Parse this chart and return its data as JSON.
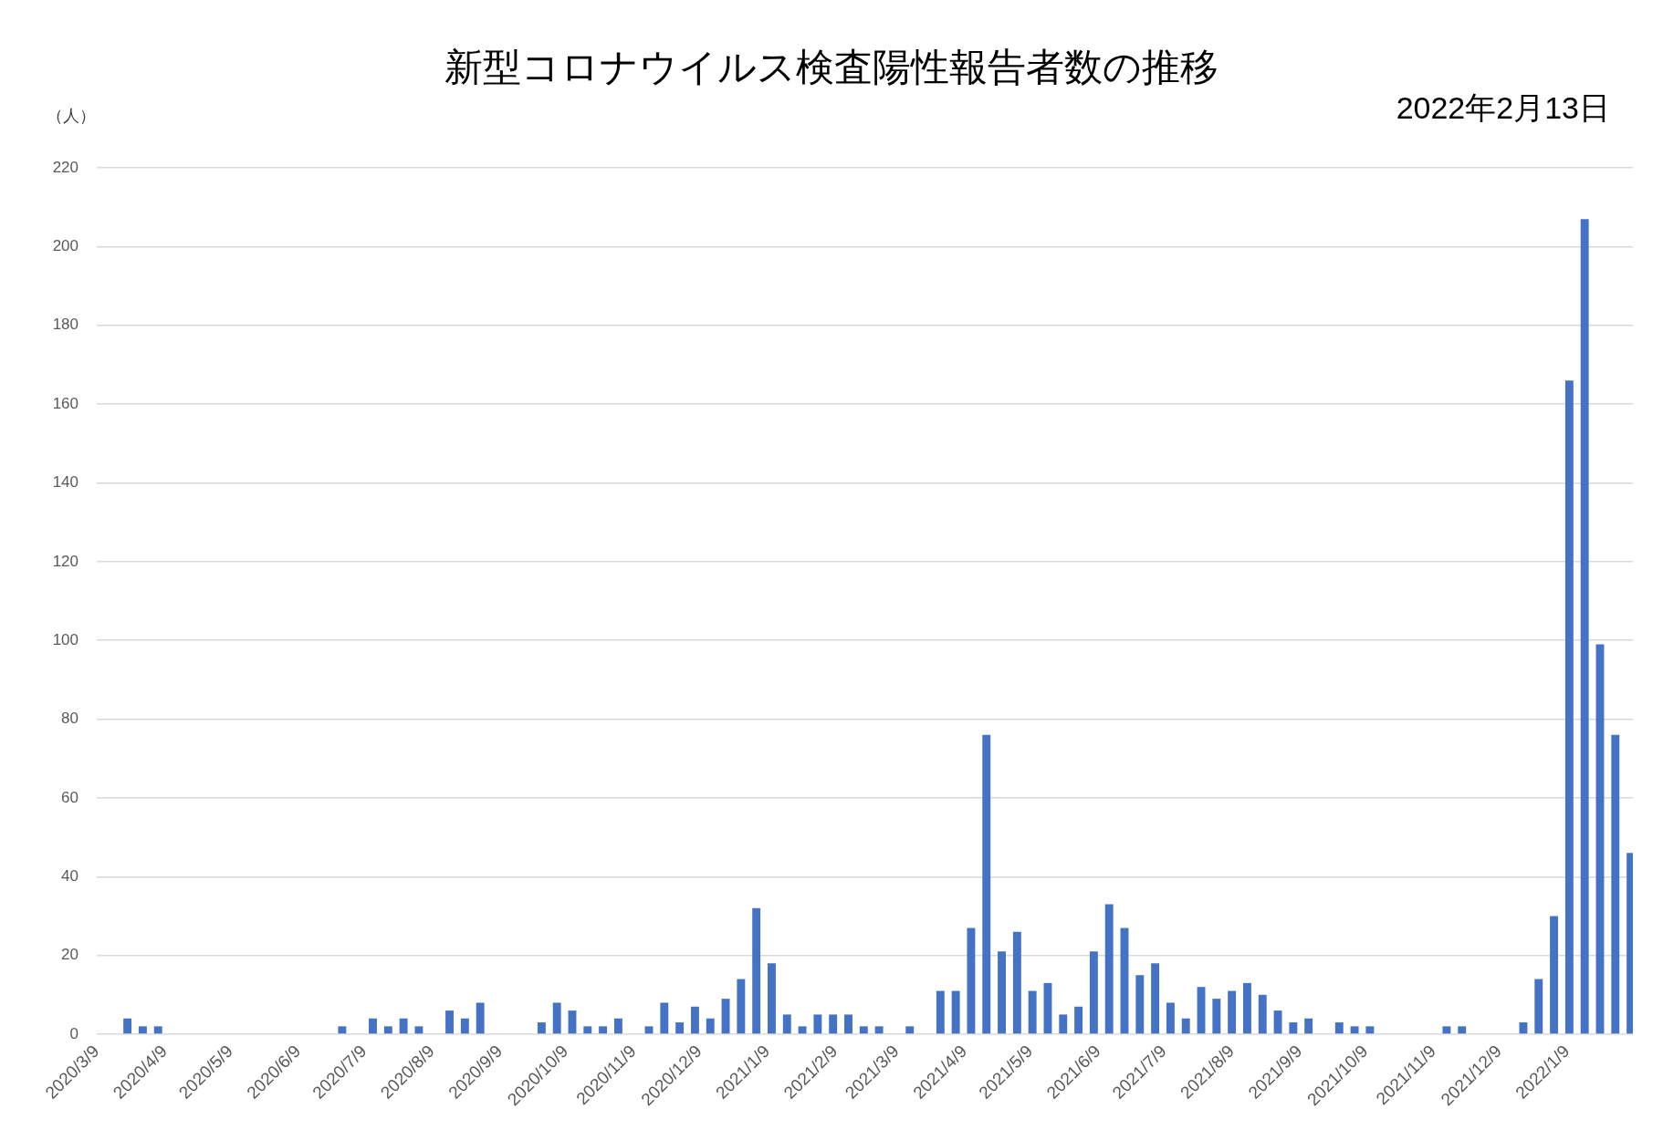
{
  "chart_data": {
    "type": "bar",
    "title": "新型コロナウイルス検査陽性報告者数の推移",
    "subtitle": "2022年2月13日",
    "ylabel": "（人）",
    "x": [
      "2020-03-23",
      "2020-03-30",
      "2020-04-06",
      "2020-06-29",
      "2020-07-13",
      "2020-07-20",
      "2020-07-27",
      "2020-08-03",
      "2020-08-17",
      "2020-08-24",
      "2020-08-31",
      "2020-09-28",
      "2020-10-05",
      "2020-10-12",
      "2020-10-19",
      "2020-10-26",
      "2020-11-02",
      "2020-11-16",
      "2020-11-23",
      "2020-11-30",
      "2020-12-07",
      "2020-12-14",
      "2020-12-21",
      "2020-12-28",
      "2021-01-04",
      "2021-01-11",
      "2021-01-18",
      "2021-01-25",
      "2021-02-01",
      "2021-02-08",
      "2021-02-15",
      "2021-02-22",
      "2021-03-01",
      "2021-03-15",
      "2021-03-29",
      "2021-04-05",
      "2021-04-12",
      "2021-04-19",
      "2021-04-26",
      "2021-05-03",
      "2021-05-10",
      "2021-05-17",
      "2021-05-24",
      "2021-05-31",
      "2021-06-07",
      "2021-06-14",
      "2021-06-21",
      "2021-06-28",
      "2021-07-05",
      "2021-07-12",
      "2021-07-19",
      "2021-07-26",
      "2021-08-02",
      "2021-08-09",
      "2021-08-16",
      "2021-08-23",
      "2021-08-30",
      "2021-09-06",
      "2021-09-13",
      "2021-09-27",
      "2021-10-04",
      "2021-10-11",
      "2021-11-15",
      "2021-11-22",
      "2021-12-20",
      "2021-12-27",
      "2022-01-03",
      "2022-01-10",
      "2022-01-17",
      "2022-01-24",
      "2022-01-31",
      "2022-02-07"
    ],
    "values": [
      4,
      2,
      2,
      2,
      4,
      2,
      4,
      2,
      6,
      4,
      8,
      3,
      8,
      6,
      2,
      2,
      4,
      2,
      8,
      3,
      7,
      4,
      9,
      14,
      32,
      18,
      5,
      2,
      5,
      5,
      5,
      2,
      2,
      2,
      11,
      11,
      27,
      76,
      21,
      26,
      11,
      13,
      5,
      7,
      21,
      33,
      27,
      15,
      18,
      8,
      4,
      12,
      9,
      11,
      13,
      10,
      6,
      3,
      4,
      3,
      2,
      2,
      2,
      2,
      3,
      14,
      30,
      166,
      207,
      99,
      76,
      46
    ],
    "color": "#4472c4",
    "xlim": [
      "2020-03-09",
      "2022-02-08"
    ],
    "xticks": [
      {
        "value": "2020-03-09",
        "label": "2020/3/9"
      },
      {
        "value": "2020-04-09",
        "label": "2020/4/9"
      },
      {
        "value": "2020-05-09",
        "label": "2020/5/9"
      },
      {
        "value": "2020-06-09",
        "label": "2020/6/9"
      },
      {
        "value": "2020-07-09",
        "label": "2020/7/9"
      },
      {
        "value": "2020-08-09",
        "label": "2020/8/9"
      },
      {
        "value": "2020-09-09",
        "label": "2020/9/9"
      },
      {
        "value": "2020-10-09",
        "label": "2020/10/9"
      },
      {
        "value": "2020-11-09",
        "label": "2020/11/9"
      },
      {
        "value": "2020-12-09",
        "label": "2020/12/9"
      },
      {
        "value": "2021-01-09",
        "label": "2021/1/9"
      },
      {
        "value": "2021-02-09",
        "label": "2021/2/9"
      },
      {
        "value": "2021-03-09",
        "label": "2021/3/9"
      },
      {
        "value": "2021-04-09",
        "label": "2021/4/9"
      },
      {
        "value": "2021-05-09",
        "label": "2021/5/9"
      },
      {
        "value": "2021-06-09",
        "label": "2021/6/9"
      },
      {
        "value": "2021-07-09",
        "label": "2021/7/9"
      },
      {
        "value": "2021-08-09",
        "label": "2021/8/9"
      },
      {
        "value": "2021-09-09",
        "label": "2021/9/9"
      },
      {
        "value": "2021-10-09",
        "label": "2021/10/9"
      },
      {
        "value": "2021-11-09",
        "label": "2021/11/9"
      },
      {
        "value": "2021-12-09",
        "label": "2021/12/9"
      },
      {
        "value": "2022-01-09",
        "label": "2022/1/9"
      }
    ],
    "ylim": [
      0,
      220
    ],
    "yticks": [
      0,
      20,
      40,
      60,
      80,
      100,
      120,
      140,
      160,
      180,
      200,
      220
    ],
    "grid": "y"
  }
}
